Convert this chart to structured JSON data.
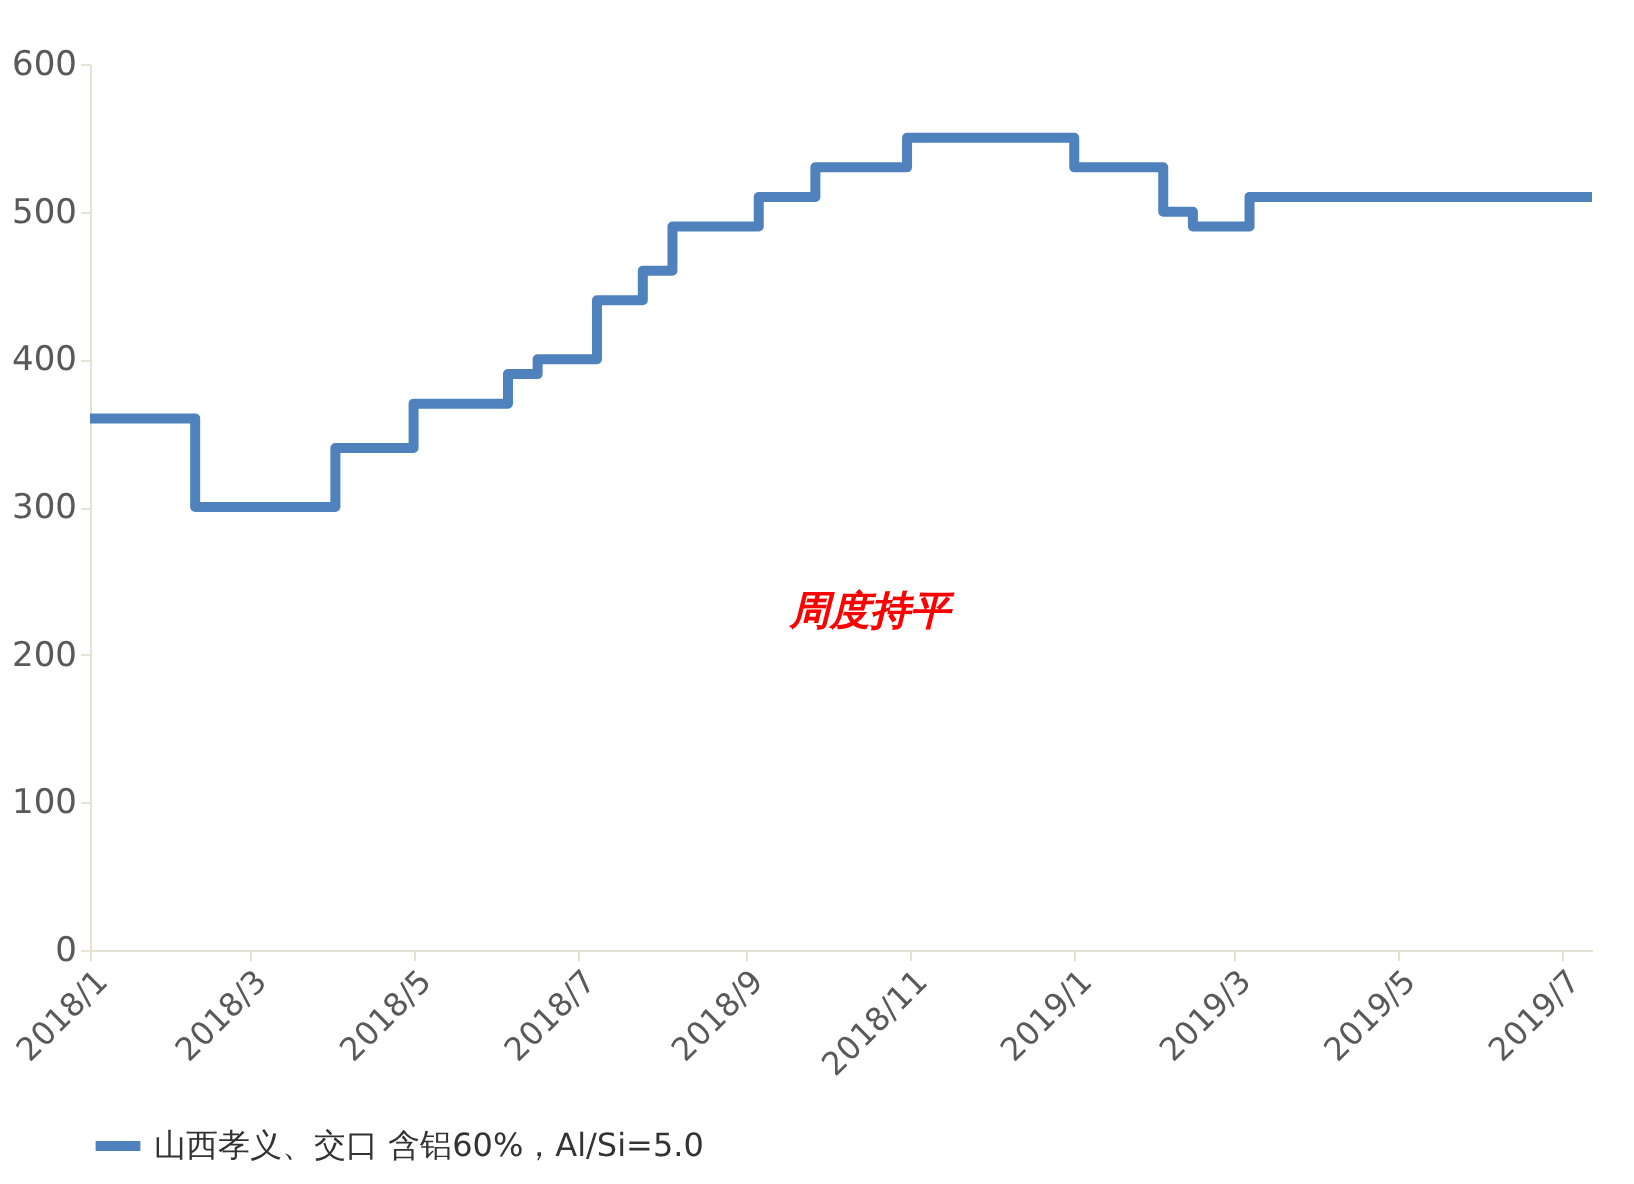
{
  "chart_data": {
    "type": "step",
    "x": [
      "2018-01-01",
      "2018-02-09",
      "2018-04-02",
      "2018-05-01",
      "2018-06-05",
      "2018-06-16",
      "2018-07-08",
      "2018-07-25",
      "2018-08-05",
      "2018-09-06",
      "2018-09-27",
      "2018-10-31",
      "2019-01-01",
      "2019-02-03",
      "2019-02-14",
      "2019-03-07",
      "2019-07-12"
    ],
    "series": [
      {
        "name": "山西孝义、交口 含铝60%，Al/Si=5.0",
        "color": "#4f81bd",
        "values": [
          360,
          300,
          340,
          370,
          390,
          400,
          440,
          460,
          490,
          510,
          530,
          550,
          530,
          500,
          490,
          510,
          510
        ]
      }
    ],
    "xlim": [
      "2018-01-01",
      "2019-07-12"
    ],
    "xticks": [
      {
        "value": "2018-01-01",
        "label": "2018/1"
      },
      {
        "value": "2018-03-01",
        "label": "2018/3"
      },
      {
        "value": "2018-05-01",
        "label": "2018/5"
      },
      {
        "value": "2018-07-01",
        "label": "2018/7"
      },
      {
        "value": "2018-09-01",
        "label": "2018/9"
      },
      {
        "value": "2018-11-01",
        "label": "2018/11"
      },
      {
        "value": "2019-01-01",
        "label": "2019/1"
      },
      {
        "value": "2019-03-01",
        "label": "2019/3"
      },
      {
        "value": "2019-05-01",
        "label": "2019/5"
      },
      {
        "value": "2019-07-01",
        "label": "2019/7"
      }
    ],
    "ylim": [
      0,
      600
    ],
    "yticks": [
      0,
      100,
      200,
      300,
      400,
      500,
      600
    ],
    "annotations": [
      "周度持平"
    ],
    "grid": false,
    "legend": "bottom",
    "line_style": "solid",
    "marker": "none"
  }
}
